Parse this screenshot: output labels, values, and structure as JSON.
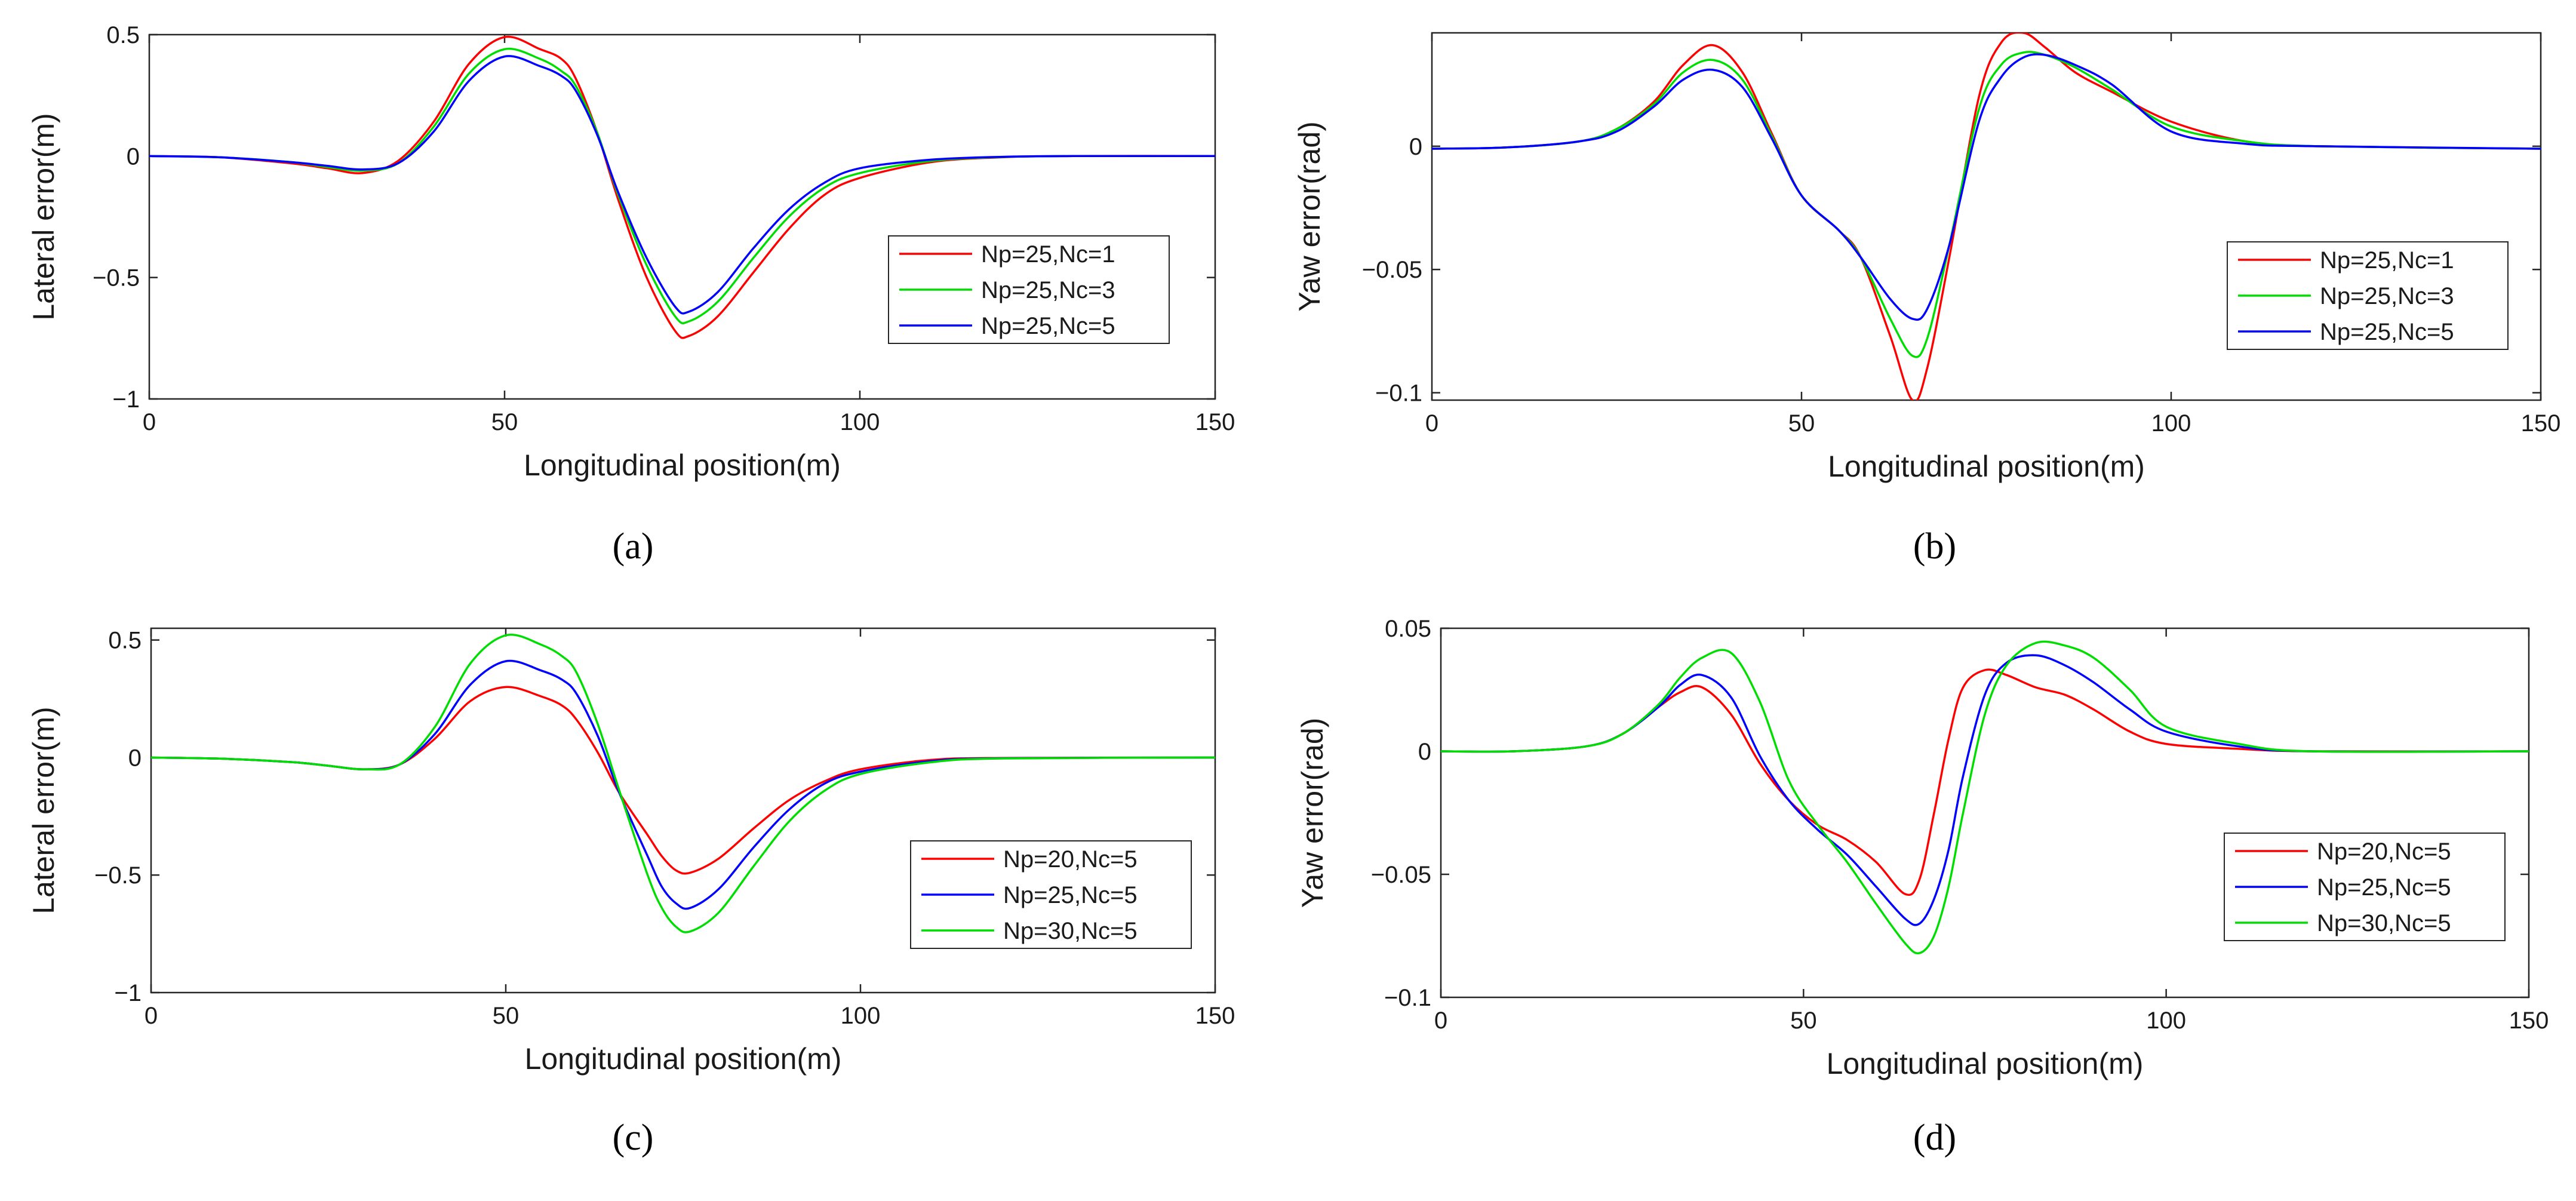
{
  "figure": {
    "captions": [
      "(a)",
      "(b)",
      "(c)",
      "(d)"
    ]
  },
  "chart_data": [
    {
      "id": "a",
      "type": "line",
      "caption": "(a)",
      "title": "",
      "xlabel": "Longitudinal position(m)",
      "ylabel": "Lateral error(m)",
      "xlim": [
        0,
        150
      ],
      "ylim": [
        -1,
        0.5
      ],
      "xticks": [
        0,
        50,
        100,
        150
      ],
      "yticks": [
        -1,
        -0.5,
        0,
        0.5
      ],
      "ytick_labels": [
        "−1",
        "−0.5",
        "0",
        "0.5"
      ],
      "grid": false,
      "legend_position": "right",
      "series": [
        {
          "name": "Np=25,Nc=1",
          "color": "#ff0000",
          "x": [
            0,
            10,
            20,
            25,
            30,
            35,
            40,
            45,
            50,
            55,
            58,
            60,
            63,
            66,
            70,
            74,
            76,
            80,
            85,
            90,
            95,
            100,
            110,
            120,
            130,
            150
          ],
          "y": [
            0,
            -0.005,
            -0.03,
            -0.05,
            -0.07,
            -0.02,
            0.14,
            0.38,
            0.49,
            0.44,
            0.4,
            0.32,
            0.1,
            -0.18,
            -0.5,
            -0.72,
            -0.74,
            -0.66,
            -0.48,
            -0.3,
            -0.16,
            -0.09,
            -0.025,
            -0.005,
            0,
            0
          ]
        },
        {
          "name": "Np=25,Nc=3",
          "color": "#00dd00",
          "x": [
            0,
            10,
            20,
            25,
            30,
            35,
            40,
            45,
            50,
            55,
            58,
            60,
            63,
            66,
            70,
            74,
            76,
            80,
            85,
            90,
            95,
            100,
            110,
            120,
            130,
            150
          ],
          "y": [
            0,
            -0.005,
            -0.025,
            -0.045,
            -0.06,
            -0.03,
            0.12,
            0.34,
            0.44,
            0.4,
            0.35,
            0.29,
            0.1,
            -0.16,
            -0.45,
            -0.66,
            -0.68,
            -0.6,
            -0.42,
            -0.25,
            -0.13,
            -0.07,
            -0.02,
            -0.004,
            0,
            0
          ]
        },
        {
          "name": "Np=25,Nc=5",
          "color": "#0000ff",
          "x": [
            0,
            10,
            20,
            25,
            30,
            35,
            40,
            45,
            50,
            55,
            58,
            60,
            63,
            66,
            70,
            74,
            76,
            80,
            85,
            90,
            95,
            100,
            110,
            120,
            130,
            150
          ],
          "y": [
            0,
            -0.005,
            -0.025,
            -0.04,
            -0.055,
            -0.03,
            0.1,
            0.31,
            0.41,
            0.37,
            0.33,
            0.27,
            0.09,
            -0.15,
            -0.42,
            -0.62,
            -0.64,
            -0.56,
            -0.38,
            -0.22,
            -0.11,
            -0.05,
            -0.015,
            -0.003,
            0,
            0
          ]
        }
      ]
    },
    {
      "id": "b",
      "type": "line",
      "caption": "(b)",
      "title": "",
      "xlabel": "Longitudinal position(m)",
      "ylabel": "Yaw error(rad)",
      "xlim": [
        0,
        150
      ],
      "ylim": [
        -0.103,
        0.046
      ],
      "xticks": [
        0,
        50,
        100,
        150
      ],
      "yticks": [
        -0.1,
        -0.05,
        0
      ],
      "ytick_labels": [
        "−0.1",
        "−0.05",
        "0"
      ],
      "grid": false,
      "legend_position": "right",
      "series": [
        {
          "name": "Np=25,Nc=1",
          "color": "#ff0000",
          "x": [
            0,
            10,
            20,
            25,
            30,
            34,
            38,
            42,
            46,
            50,
            55,
            58,
            62,
            65,
            67,
            70,
            74,
            77,
            80,
            83,
            87,
            92,
            100,
            110,
            120,
            150
          ],
          "y": [
            -0.001,
            -0.0005,
            0.002,
            0.007,
            0.018,
            0.033,
            0.041,
            0.03,
            0.005,
            -0.02,
            -0.034,
            -0.045,
            -0.077,
            -0.103,
            -0.09,
            -0.045,
            0.02,
            0.042,
            0.046,
            0.04,
            0.03,
            0.022,
            0.01,
            0.002,
            0,
            -0.001
          ]
        },
        {
          "name": "Np=25,Nc=3",
          "color": "#00dd00",
          "x": [
            0,
            10,
            20,
            25,
            30,
            34,
            38,
            42,
            46,
            50,
            55,
            58,
            62,
            65,
            67,
            70,
            74,
            77,
            80,
            83,
            87,
            92,
            100,
            110,
            120,
            150
          ],
          "y": [
            -0.001,
            -0.0005,
            0.002,
            0.007,
            0.017,
            0.03,
            0.035,
            0.027,
            0.004,
            -0.02,
            -0.034,
            -0.045,
            -0.07,
            -0.085,
            -0.078,
            -0.04,
            0.015,
            0.033,
            0.038,
            0.037,
            0.032,
            0.023,
            0.008,
            0.002,
            0,
            -0.001
          ]
        },
        {
          "name": "Np=25,Nc=5",
          "color": "#0000ff",
          "x": [
            0,
            10,
            20,
            25,
            30,
            34,
            38,
            42,
            46,
            50,
            55,
            58,
            62,
            65,
            67,
            70,
            74,
            77,
            80,
            83,
            87,
            92,
            100,
            110,
            120,
            150
          ],
          "y": [
            -0.001,
            -0.0005,
            0.002,
            0.006,
            0.016,
            0.027,
            0.031,
            0.024,
            0.003,
            -0.02,
            -0.034,
            -0.045,
            -0.062,
            -0.07,
            -0.066,
            -0.04,
            0.01,
            0.028,
            0.036,
            0.037,
            0.033,
            0.025,
            0.006,
            0.001,
            0,
            -0.001
          ]
        }
      ]
    },
    {
      "id": "c",
      "type": "line",
      "caption": "(c)",
      "title": "",
      "xlabel": "Longitudinal position(m)",
      "ylabel": "Lateral error(m)",
      "xlim": [
        0,
        150
      ],
      "ylim": [
        -1,
        0.55
      ],
      "xticks": [
        0,
        50,
        100,
        150
      ],
      "yticks": [
        -1,
        -0.5,
        0,
        0.5
      ],
      "ytick_labels": [
        "−1",
        "−0.5",
        "0",
        "0.5"
      ],
      "grid": false,
      "legend_position": "right",
      "series": [
        {
          "name": "Np=20,Nc=5",
          "color": "#ff0000",
          "x": [
            0,
            10,
            20,
            25,
            30,
            35,
            40,
            45,
            50,
            55,
            58,
            60,
            63,
            66,
            70,
            72,
            74,
            76,
            80,
            85,
            90,
            95,
            100,
            110,
            120,
            150
          ],
          "y": [
            0,
            -0.005,
            -0.02,
            -0.035,
            -0.05,
            -0.03,
            0.08,
            0.24,
            0.3,
            0.26,
            0.22,
            0.16,
            0.02,
            -0.15,
            -0.33,
            -0.42,
            -0.48,
            -0.49,
            -0.43,
            -0.3,
            -0.18,
            -0.1,
            -0.05,
            -0.01,
            -0.002,
            0
          ]
        },
        {
          "name": "Np=25,Nc=5",
          "color": "#0000ff",
          "x": [
            0,
            10,
            20,
            25,
            30,
            35,
            40,
            45,
            50,
            55,
            58,
            60,
            63,
            66,
            70,
            72,
            74,
            76,
            80,
            85,
            90,
            95,
            100,
            110,
            120,
            150
          ],
          "y": [
            0,
            -0.005,
            -0.02,
            -0.035,
            -0.05,
            -0.03,
            0.1,
            0.31,
            0.41,
            0.37,
            0.33,
            0.27,
            0.09,
            -0.15,
            -0.42,
            -0.55,
            -0.62,
            -0.64,
            -0.56,
            -0.38,
            -0.22,
            -0.11,
            -0.06,
            -0.015,
            -0.003,
            0
          ]
        },
        {
          "name": "Np=30,Nc=5",
          "color": "#00dd00",
          "x": [
            0,
            10,
            20,
            25,
            30,
            35,
            40,
            45,
            50,
            55,
            58,
            60,
            63,
            66,
            70,
            72,
            74,
            76,
            80,
            85,
            90,
            95,
            100,
            110,
            120,
            150
          ],
          "y": [
            0,
            -0.005,
            -0.02,
            -0.035,
            -0.05,
            -0.03,
            0.13,
            0.4,
            0.52,
            0.48,
            0.43,
            0.36,
            0.14,
            -0.14,
            -0.5,
            -0.64,
            -0.72,
            -0.74,
            -0.66,
            -0.46,
            -0.27,
            -0.14,
            -0.07,
            -0.02,
            -0.004,
            0
          ]
        }
      ]
    },
    {
      "id": "d",
      "type": "line",
      "caption": "(d)",
      "title": "",
      "xlabel": "Longitudinal position(m)",
      "ylabel": "Yaw error(rad)",
      "xlim": [
        0,
        150
      ],
      "ylim": [
        -0.1,
        0.05
      ],
      "xticks": [
        0,
        50,
        100,
        150
      ],
      "yticks": [
        -0.1,
        -0.05,
        0,
        0.05
      ],
      "ytick_labels": [
        "−0.1",
        "−0.05",
        "0",
        "0.05"
      ],
      "grid": false,
      "legend_position": "right",
      "series": [
        {
          "name": "Np=20,Nc=5",
          "color": "#ff0000",
          "x": [
            0,
            10,
            20,
            25,
            30,
            33,
            36,
            40,
            44,
            48,
            52,
            56,
            60,
            64,
            66,
            68,
            70,
            72,
            75,
            78,
            82,
            86,
            90,
            95,
            100,
            110,
            120,
            150
          ],
          "y": [
            0,
            0,
            0.002,
            0.007,
            0.018,
            0.024,
            0.026,
            0.015,
            -0.005,
            -0.02,
            -0.03,
            -0.036,
            -0.045,
            -0.058,
            -0.052,
            -0.025,
            0.005,
            0.026,
            0.033,
            0.031,
            0.026,
            0.023,
            0.017,
            0.008,
            0.003,
            0.001,
            0,
            0
          ]
        },
        {
          "name": "Np=25,Nc=5",
          "color": "#0000ff",
          "x": [
            0,
            10,
            20,
            25,
            30,
            33,
            36,
            40,
            44,
            48,
            52,
            56,
            60,
            64,
            66,
            68,
            70,
            72,
            75,
            78,
            82,
            86,
            90,
            95,
            100,
            110,
            120,
            150
          ],
          "y": [
            0,
            0,
            0.002,
            0.007,
            0.018,
            0.027,
            0.031,
            0.022,
            -0.002,
            -0.02,
            -0.032,
            -0.042,
            -0.055,
            -0.068,
            -0.07,
            -0.06,
            -0.04,
            -0.01,
            0.023,
            0.036,
            0.039,
            0.035,
            0.028,
            0.017,
            0.008,
            0.002,
            0,
            0
          ]
        },
        {
          "name": "Np=30,Nc=5",
          "color": "#00dd00",
          "x": [
            0,
            10,
            20,
            25,
            30,
            33,
            36,
            40,
            44,
            48,
            52,
            56,
            60,
            64,
            66,
            68,
            70,
            72,
            75,
            78,
            82,
            86,
            90,
            95,
            100,
            110,
            120,
            150
          ],
          "y": [
            0,
            0,
            0.002,
            0.007,
            0.019,
            0.03,
            0.038,
            0.04,
            0.02,
            -0.012,
            -0.03,
            -0.045,
            -0.062,
            -0.078,
            -0.082,
            -0.075,
            -0.055,
            -0.025,
            0.015,
            0.035,
            0.044,
            0.043,
            0.038,
            0.025,
            0.01,
            0.003,
            0,
            0
          ]
        }
      ]
    }
  ]
}
